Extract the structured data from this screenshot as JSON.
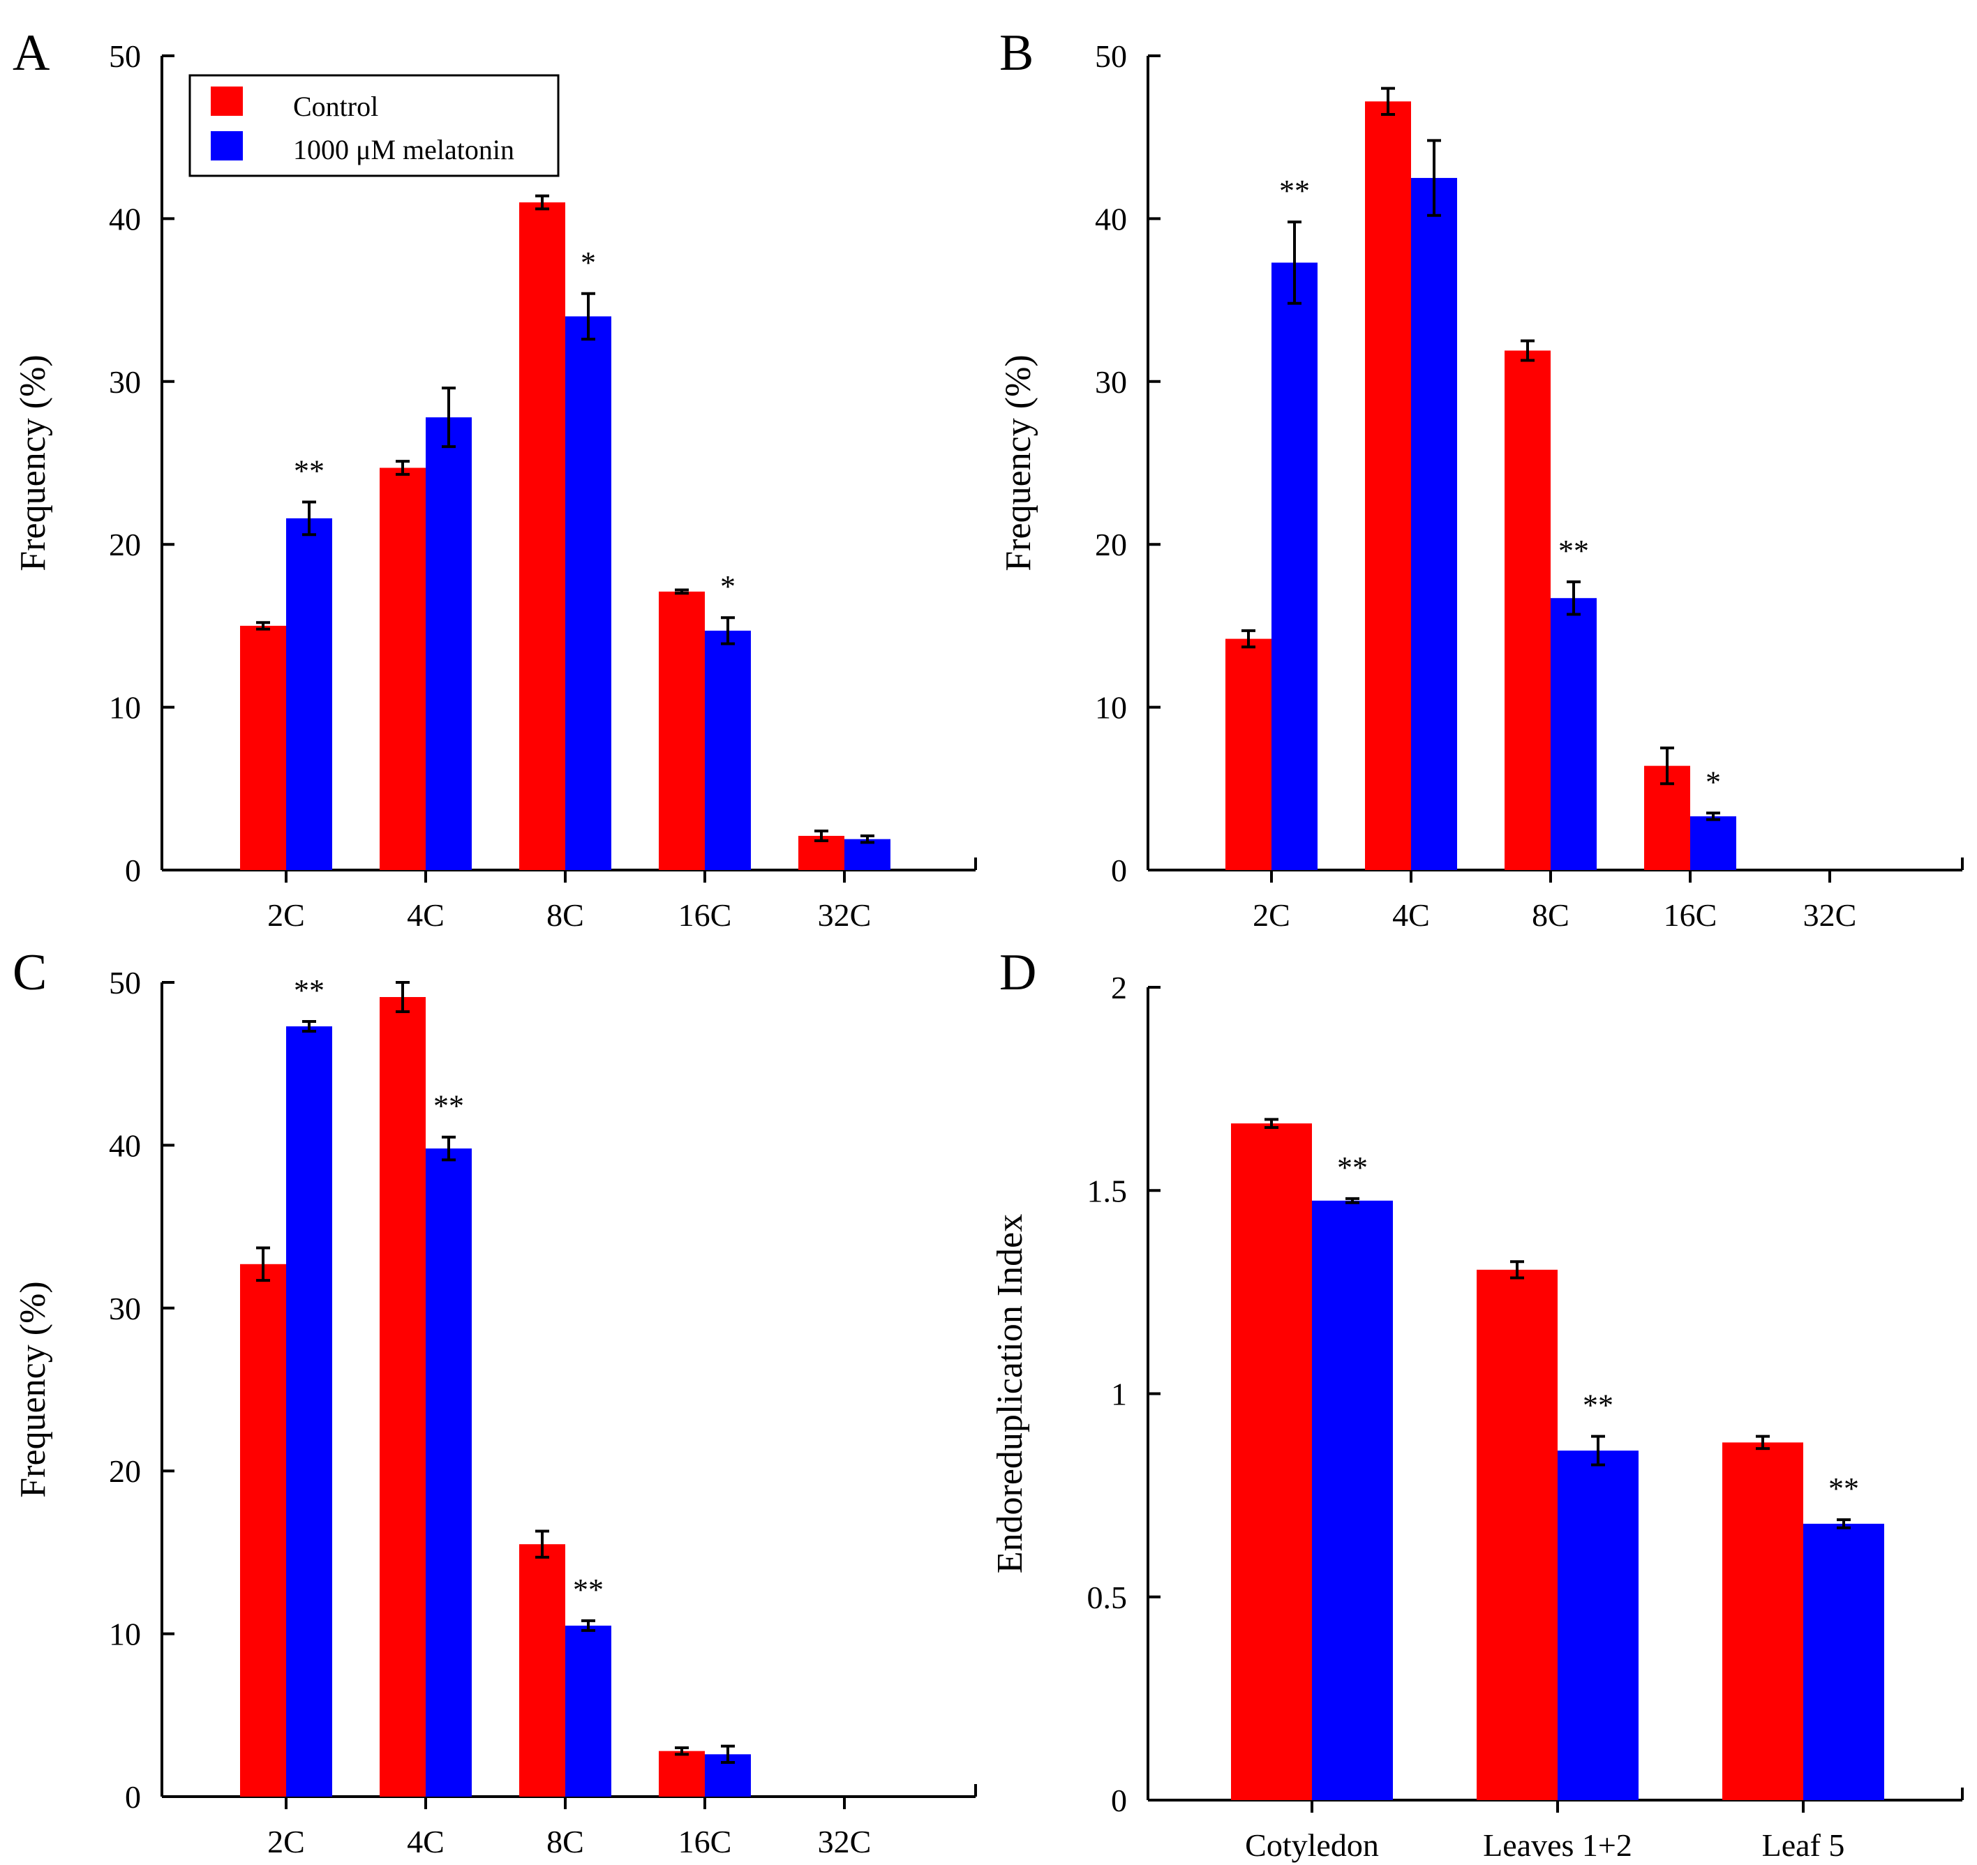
{
  "legend": {
    "entries": [
      {
        "label": "Control",
        "color": "#ff0000"
      },
      {
        "label": "1000 μM melatonin",
        "color": "#0000ff"
      }
    ]
  },
  "chart_data": [
    {
      "panel": "A",
      "type": "bar",
      "ylabel": "Frequency (%)",
      "ylim": [
        0,
        50
      ],
      "yticks": [
        "0",
        "10",
        "20",
        "30",
        "40",
        "50"
      ],
      "categories": [
        "2C",
        "4C",
        "8C",
        "16C",
        "32C"
      ],
      "series": [
        {
          "name": "Control",
          "color": "#ff0000",
          "values": [
            15.0,
            24.7,
            41.0,
            17.1,
            2.1
          ],
          "errors": [
            0.2,
            0.4,
            0.4,
            0.1,
            0.3
          ]
        },
        {
          "name": "1000 μM melatonin",
          "color": "#0000ff",
          "values": [
            21.6,
            27.8,
            34.0,
            14.7,
            1.9
          ],
          "errors": [
            1.0,
            1.8,
            1.4,
            0.8,
            0.2
          ]
        }
      ],
      "significance": [
        "**",
        "",
        "*",
        "*",
        ""
      ]
    },
    {
      "panel": "B",
      "type": "bar",
      "ylabel": "Frequency (%)",
      "ylim": [
        0,
        50
      ],
      "yticks": [
        "0",
        "10",
        "20",
        "30",
        "40",
        "50"
      ],
      "categories": [
        "2C",
        "4C",
        "8C",
        "16C",
        "32C"
      ],
      "series": [
        {
          "name": "Control",
          "color": "#ff0000",
          "values": [
            14.2,
            47.2,
            31.9,
            6.4,
            0
          ],
          "errors": [
            0.5,
            0.8,
            0.6,
            1.1,
            0
          ]
        },
        {
          "name": "1000 μM melatonin",
          "color": "#0000ff",
          "values": [
            37.3,
            42.5,
            16.7,
            3.3,
            0
          ],
          "errors": [
            2.5,
            2.3,
            1.0,
            0.2,
            0
          ]
        }
      ],
      "significance": [
        "**",
        "",
        "**",
        "*",
        ""
      ]
    },
    {
      "panel": "C",
      "type": "bar",
      "ylabel": "Frequency (%)",
      "ylim": [
        0,
        50
      ],
      "yticks": [
        "0",
        "10",
        "20",
        "30",
        "40",
        "50"
      ],
      "categories": [
        "2C",
        "4C",
        "8C",
        "16C",
        "32C"
      ],
      "series": [
        {
          "name": "Control",
          "color": "#ff0000",
          "values": [
            32.7,
            49.1,
            15.5,
            2.8,
            0
          ],
          "errors": [
            1.0,
            0.9,
            0.8,
            0.2,
            0
          ]
        },
        {
          "name": "1000 μM melatonin",
          "color": "#0000ff",
          "values": [
            47.3,
            39.8,
            10.5,
            2.6,
            0
          ],
          "errors": [
            0.3,
            0.7,
            0.3,
            0.5,
            0
          ]
        }
      ],
      "significance": [
        "**",
        "**",
        "**",
        "",
        ""
      ]
    },
    {
      "panel": "D",
      "type": "bar",
      "ylabel": "Endoreduplication Index",
      "ylim": [
        0,
        2
      ],
      "yticks": [
        "0",
        "0.5",
        "1",
        "1.5",
        "2"
      ],
      "categories": [
        "Cotyledon",
        "Leaves 1+2",
        "Leaf 5"
      ],
      "series": [
        {
          "name": "Control",
          "color": "#ff0000",
          "values": [
            1.665,
            1.305,
            0.88
          ],
          "errors": [
            0.01,
            0.02,
            0.015
          ]
        },
        {
          "name": "1000 μM melatonin",
          "color": "#0000ff",
          "values": [
            1.475,
            0.86,
            0.68
          ],
          "errors": [
            0.005,
            0.035,
            0.01
          ]
        }
      ],
      "significance": [
        "**",
        "**",
        "**"
      ]
    }
  ]
}
